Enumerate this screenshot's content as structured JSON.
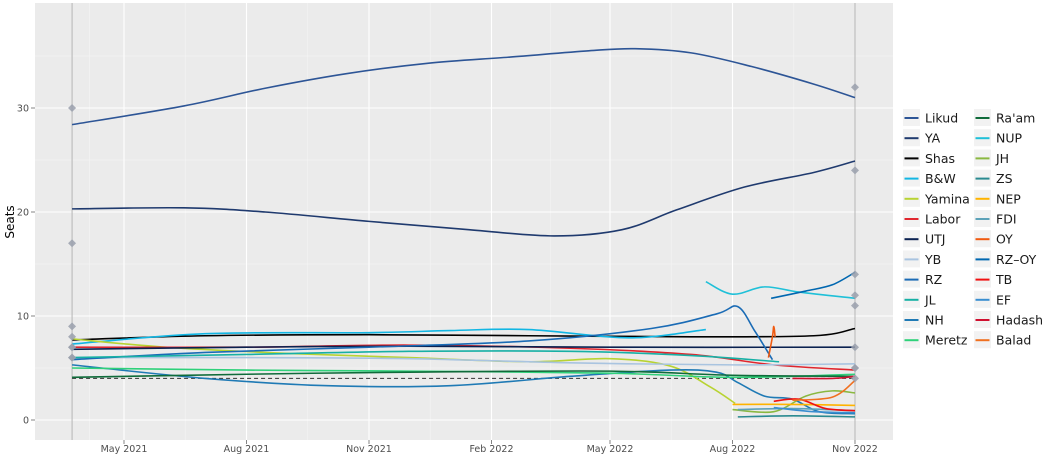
{
  "chart_data": {
    "type": "line",
    "ylabel": "Seats",
    "xlabel": "",
    "ylim": [
      -1.9,
      40.2
    ],
    "xlim": [
      "2021-02-23",
      "2022-11-28"
    ],
    "y_ticks": [
      "0",
      "10",
      "20",
      "30"
    ],
    "x_ticks": [
      {
        "date": "2021-05-01",
        "label": "May 2021"
      },
      {
        "date": "2021-08-01",
        "label": "Aug 2021"
      },
      {
        "date": "2021-11-01",
        "label": "Nov 2021"
      },
      {
        "date": "2022-02-01",
        "label": "Feb 2022"
      },
      {
        "date": "2022-05-01",
        "label": "May 2022"
      },
      {
        "date": "2022-08-01",
        "label": "Aug 2022"
      },
      {
        "date": "2022-11-01",
        "label": "Nov 2022"
      }
    ],
    "grid": true,
    "legend_placement": "right",
    "election_dates": [
      "2021-03-23",
      "2022-11-01"
    ],
    "threshold_line": 4,
    "series": [
      {
        "name": "Likud",
        "color": "#2d5596",
        "points": [
          [
            "2021-03-23",
            28.4
          ],
          [
            "2021-06-15",
            30.2
          ],
          [
            "2021-08-15",
            31.9
          ],
          [
            "2021-10-15",
            33.3
          ],
          [
            "2021-12-15",
            34.3
          ],
          [
            "2022-02-15",
            34.9
          ],
          [
            "2022-04-15",
            35.5
          ],
          [
            "2022-05-20",
            35.7
          ],
          [
            "2022-07-01",
            35.3
          ],
          [
            "2022-08-15",
            34
          ],
          [
            "2022-10-01",
            32.3
          ],
          [
            "2022-11-01",
            31
          ]
        ]
      },
      {
        "name": "YA",
        "color": "#1f3a6e",
        "points": [
          [
            "2021-03-23",
            20.3
          ],
          [
            "2021-06-15",
            20.4
          ],
          [
            "2021-08-15",
            20.0
          ],
          [
            "2021-11-01",
            19.1
          ],
          [
            "2022-01-15",
            18.3
          ],
          [
            "2022-03-20",
            17.7
          ],
          [
            "2022-05-10",
            18.3
          ],
          [
            "2022-06-20",
            20.2
          ],
          [
            "2022-08-10",
            22.4
          ],
          [
            "2022-10-01",
            23.8
          ],
          [
            "2022-11-01",
            24.9
          ]
        ]
      },
      {
        "name": "Shas",
        "color": "#000000",
        "points": [
          [
            "2021-03-23",
            7.7
          ],
          [
            "2021-07-01",
            8.1
          ],
          [
            "2021-11-01",
            8.2
          ],
          [
            "2022-03-01",
            8.1
          ],
          [
            "2022-07-01",
            8.0
          ],
          [
            "2022-10-01",
            8.1
          ],
          [
            "2022-11-01",
            8.8
          ]
        ]
      },
      {
        "name": "B&W",
        "color": "#12b6e3",
        "points": [
          [
            "2021-03-23",
            7.3
          ],
          [
            "2021-07-01",
            8.3
          ],
          [
            "2021-11-01",
            8.4
          ],
          [
            "2022-01-01",
            8.6
          ],
          [
            "2022-03-01",
            8.7
          ],
          [
            "2022-05-15",
            7.9
          ],
          [
            "2022-07-12",
            8.7
          ]
        ]
      },
      {
        "name": "Yamina",
        "color": "#b8d332",
        "points": [
          [
            "2021-03-23",
            7.8
          ],
          [
            "2021-06-01",
            7.0
          ],
          [
            "2021-09-01",
            6.4
          ],
          [
            "2021-12-01",
            6.0
          ],
          [
            "2022-03-01",
            5.6
          ],
          [
            "2022-05-01",
            5.9
          ],
          [
            "2022-06-15",
            5.2
          ],
          [
            "2022-07-15",
            3.2
          ],
          [
            "2022-08-03",
            1.6
          ]
        ]
      },
      {
        "name": "Labor",
        "color": "#e0262e",
        "points": [
          [
            "2021-03-23",
            7.0
          ],
          [
            "2021-08-01",
            7.0
          ],
          [
            "2021-12-01",
            7.2
          ],
          [
            "2022-04-01",
            6.9
          ],
          [
            "2022-07-01",
            6.3
          ],
          [
            "2022-09-01",
            5.3
          ],
          [
            "2022-11-01",
            4.8
          ]
        ]
      },
      {
        "name": "UTJ",
        "color": "#0a2150",
        "points": [
          [
            "2021-03-23",
            6.8
          ],
          [
            "2021-08-01",
            7.0
          ],
          [
            "2021-12-01",
            7.1
          ],
          [
            "2022-05-01",
            7.0
          ],
          [
            "2022-11-01",
            7.0
          ]
        ]
      },
      {
        "name": "YB",
        "color": "#a9c4e0",
        "points": [
          [
            "2021-03-23",
            6.0
          ],
          [
            "2021-08-01",
            6.0
          ],
          [
            "2021-12-01",
            5.9
          ],
          [
            "2022-04-01",
            5.5
          ],
          [
            "2022-08-01",
            5.3
          ],
          [
            "2022-11-01",
            5.4
          ]
        ]
      },
      {
        "name": "RZ",
        "color": "#1a6bb5",
        "points": [
          [
            "2021-03-23",
            5.8
          ],
          [
            "2021-07-01",
            6.5
          ],
          [
            "2021-11-01",
            7.0
          ],
          [
            "2022-03-01",
            7.6
          ],
          [
            "2022-06-01",
            8.8
          ],
          [
            "2022-07-20",
            10.2
          ],
          [
            "2022-08-05",
            10.9
          ],
          [
            "2022-08-18",
            8.5
          ],
          [
            "2022-08-31",
            5.8
          ]
        ]
      },
      {
        "name": "JL",
        "color": "#17b0a5",
        "points": [
          [
            "2021-03-23",
            6.0
          ],
          [
            "2021-08-01",
            6.3
          ],
          [
            "2021-12-01",
            6.6
          ],
          [
            "2022-04-01",
            6.6
          ],
          [
            "2022-07-01",
            6.2
          ],
          [
            "2022-09-05",
            5.6
          ]
        ]
      },
      {
        "name": "NH",
        "color": "#1f7ab5",
        "points": [
          [
            "2021-03-23",
            5.3
          ],
          [
            "2021-07-01",
            4.0
          ],
          [
            "2021-10-01",
            3.3
          ],
          [
            "2022-01-01",
            3.3
          ],
          [
            "2022-04-01",
            4.2
          ],
          [
            "2022-06-15",
            4.8
          ],
          [
            "2022-07-20",
            4.6
          ],
          [
            "2022-08-05",
            3.6
          ],
          [
            "2022-08-25",
            2.3
          ],
          [
            "2022-09-15",
            2.0
          ],
          [
            "2022-10-05",
            0.8
          ],
          [
            "2022-11-01",
            0.6
          ]
        ]
      },
      {
        "name": "Meretz",
        "color": "#2fd17a",
        "points": [
          [
            "2021-03-23",
            5.0
          ],
          [
            "2021-08-01",
            4.8
          ],
          [
            "2021-12-01",
            4.7
          ],
          [
            "2022-05-01",
            4.5
          ],
          [
            "2022-08-01",
            4.1
          ],
          [
            "2022-11-01",
            4.4
          ]
        ]
      },
      {
        "name": "Ra'am",
        "color": "#0f6b3a",
        "points": [
          [
            "2021-03-23",
            4.1
          ],
          [
            "2021-08-01",
            4.4
          ],
          [
            "2021-12-01",
            4.6
          ],
          [
            "2022-05-01",
            4.7
          ],
          [
            "2022-08-01",
            4.3
          ],
          [
            "2022-11-01",
            4.2
          ]
        ]
      },
      {
        "name": "NUP",
        "color": "#1fc0d8",
        "points": [
          [
            "2022-07-12",
            13.3
          ],
          [
            "2022-08-01",
            12.1
          ],
          [
            "2022-08-25",
            12.8
          ],
          [
            "2022-09-20",
            12.3
          ],
          [
            "2022-11-01",
            11.7
          ]
        ]
      },
      {
        "name": "JH",
        "color": "#8ab840",
        "points": [
          [
            "2022-08-01",
            1.0
          ],
          [
            "2022-09-01",
            0.8
          ],
          [
            "2022-09-25",
            2.3
          ],
          [
            "2022-10-15",
            2.8
          ],
          [
            "2022-11-01",
            2.6
          ]
        ]
      },
      {
        "name": "ZS",
        "color": "#2a8a90",
        "points": [
          [
            "2022-08-05",
            0.3
          ],
          [
            "2022-09-15",
            0.4
          ],
          [
            "2022-11-01",
            0.3
          ]
        ]
      },
      {
        "name": "NEP",
        "color": "#ffb300",
        "points": [
          [
            "2022-08-01",
            1.5
          ],
          [
            "2022-09-15",
            1.5
          ],
          [
            "2022-11-01",
            1.4
          ]
        ]
      },
      {
        "name": "FDI",
        "color": "#5da2b8",
        "points": [
          [
            "2022-08-05",
            1.0
          ],
          [
            "2022-09-15",
            1.1
          ],
          [
            "2022-11-01",
            0.9
          ]
        ]
      },
      {
        "name": "OY",
        "color": "#f05a10",
        "points": [
          [
            "2022-08-28",
            6.0
          ],
          [
            "2022-08-31",
            8.0
          ],
          [
            "2022-09-01",
            9.0
          ],
          [
            "2022-09-02",
            8.0
          ]
        ]
      },
      {
        "name": "RZ–OY",
        "color": "#0067b0",
        "points": [
          [
            "2022-08-30",
            11.7
          ],
          [
            "2022-09-25",
            12.4
          ],
          [
            "2022-10-15",
            13.0
          ],
          [
            "2022-11-01",
            14.2
          ]
        ]
      },
      {
        "name": "TB",
        "color": "#f01010",
        "points": [
          [
            "2022-09-01",
            1.8
          ],
          [
            "2022-09-20",
            2.0
          ],
          [
            "2022-10-10",
            1.1
          ],
          [
            "2022-11-01",
            0.9
          ]
        ]
      },
      {
        "name": "EF",
        "color": "#3a8ed0",
        "points": [
          [
            "2022-09-01",
            1.2
          ],
          [
            "2022-10-01",
            0.8
          ],
          [
            "2022-11-01",
            0.7
          ]
        ]
      },
      {
        "name": "Hadash",
        "color": "#d01030",
        "points": [
          [
            "2022-09-15",
            4.0
          ],
          [
            "2022-10-15",
            4.0
          ],
          [
            "2022-11-01",
            4.2
          ]
        ]
      },
      {
        "name": "Balad",
        "color": "#f07020",
        "points": [
          [
            "2022-09-15",
            1.9
          ],
          [
            "2022-10-15",
            2.2
          ],
          [
            "2022-11-01",
            3.8
          ]
        ]
      }
    ],
    "election_results": [
      {
        "date": "2021-03-23",
        "values": [
          30,
          17,
          9,
          8,
          7,
          7,
          6,
          6
        ]
      },
      {
        "date": "2022-11-01",
        "values": [
          32,
          24,
          14,
          12,
          11,
          7,
          5,
          5,
          4
        ]
      }
    ]
  }
}
